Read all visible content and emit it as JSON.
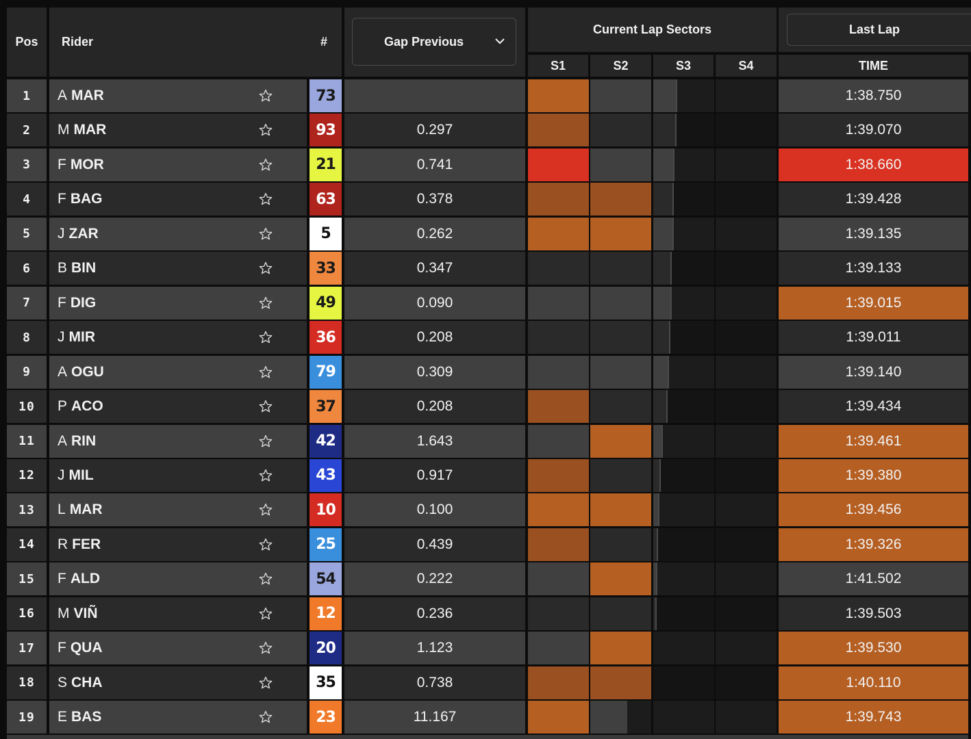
{
  "header": {
    "pos": "Pos",
    "rider": "Rider",
    "number": "#",
    "gap_dropdown": "Gap Previous",
    "current_lap_sectors": "Current Lap Sectors",
    "sectors": [
      "S1",
      "S2",
      "S3",
      "S4"
    ],
    "last_lap": "Last Lap",
    "time": "TIME"
  },
  "colors": {
    "personal_best_sector": "#b55f23",
    "overall_best": "#d93222",
    "neutral_light": "#404040",
    "neutral_dark": "#2a2a2a"
  },
  "rows": [
    {
      "pos": "1",
      "initial": "A",
      "surname": "MAR",
      "number": "73",
      "num_bg": "#9aa7de",
      "num_fg": "#1a1a1a",
      "gap": "",
      "s1": "orange",
      "s2": "neutral",
      "s3_progress": 0.37,
      "time": "1:38.750",
      "time_state": "neutral"
    },
    {
      "pos": "2",
      "initial": "M",
      "surname": "MAR",
      "number": "93",
      "num_bg": "#b0241e",
      "num_fg": "#ffffff",
      "gap": "0.297",
      "s1": "dark-orange",
      "s2": "neutral",
      "s3_progress": 0.36,
      "time": "1:39.070",
      "time_state": "neutral"
    },
    {
      "pos": "3",
      "initial": "F",
      "surname": "MOR",
      "number": "21",
      "num_bg": "#e5f542",
      "num_fg": "#1a1a1a",
      "gap": "0.741",
      "s1": "red",
      "s2": "neutral",
      "s3_progress": 0.33,
      "time": "1:38.660",
      "time_state": "red"
    },
    {
      "pos": "4",
      "initial": "F",
      "surname": "BAG",
      "number": "63",
      "num_bg": "#b0241e",
      "num_fg": "#ffffff",
      "gap": "0.378",
      "s1": "dark-orange",
      "s2": "dark-orange",
      "s3_progress": 0.31,
      "time": "1:39.428",
      "time_state": "neutral"
    },
    {
      "pos": "5",
      "initial": "J",
      "surname": "ZAR",
      "number": "5",
      "num_bg": "#ffffff",
      "num_fg": "#111111",
      "gap": "0.262",
      "s1": "orange",
      "s2": "orange",
      "s3_progress": 0.31,
      "time": "1:39.135",
      "time_state": "neutral"
    },
    {
      "pos": "6",
      "initial": "B",
      "surname": "BIN",
      "number": "33",
      "num_bg": "#f0873f",
      "num_fg": "#1a1a1a",
      "gap": "0.347",
      "s1": "neutral",
      "s2": "neutral",
      "s3_progress": 0.28,
      "time": "1:39.133",
      "time_state": "neutral"
    },
    {
      "pos": "7",
      "initial": "F",
      "surname": "DIG",
      "number": "49",
      "num_bg": "#e5f542",
      "num_fg": "#1a1a1a",
      "gap": "0.090",
      "s1": "neutral",
      "s2": "neutral",
      "s3_progress": 0.28,
      "time": "1:39.015",
      "time_state": "orange"
    },
    {
      "pos": "8",
      "initial": "J",
      "surname": "MIR",
      "number": "36",
      "num_bg": "#d42b22",
      "num_fg": "#ffffff",
      "gap": "0.208",
      "s1": "neutral",
      "s2": "neutral",
      "s3_progress": 0.26,
      "time": "1:39.011",
      "time_state": "neutral"
    },
    {
      "pos": "9",
      "initial": "A",
      "surname": "OGU",
      "number": "79",
      "num_bg": "#3a8fdc",
      "num_fg": "#ffffff",
      "gap": "0.309",
      "s1": "neutral",
      "s2": "neutral",
      "s3_progress": 0.24,
      "time": "1:39.140",
      "time_state": "neutral"
    },
    {
      "pos": "10",
      "initial": "P",
      "surname": "ACO",
      "number": "37",
      "num_bg": "#f0873f",
      "num_fg": "#1a1a1a",
      "gap": "0.208",
      "s1": "dark-orange",
      "s2": "neutral",
      "s3_progress": 0.21,
      "time": "1:39.434",
      "time_state": "neutral"
    },
    {
      "pos": "11",
      "initial": "A",
      "surname": "RIN",
      "number": "42",
      "num_bg": "#1f2c86",
      "num_fg": "#ffffff",
      "gap": "1.643",
      "s1": "neutral",
      "s2": "orange",
      "s3_progress": 0.14,
      "time": "1:39.461",
      "time_state": "orange"
    },
    {
      "pos": "12",
      "initial": "J",
      "surname": "MIL",
      "number": "43",
      "num_bg": "#2a46d4",
      "num_fg": "#ffffff",
      "gap": "0.917",
      "s1": "dark-orange",
      "s2": "neutral",
      "s3_progress": 0.1,
      "time": "1:39.380",
      "time_state": "orange"
    },
    {
      "pos": "13",
      "initial": "L",
      "surname": "MAR",
      "number": "10",
      "num_bg": "#d42b22",
      "num_fg": "#ffffff",
      "gap": "0.100",
      "s1": "orange",
      "s2": "orange",
      "s3_progress": 0.08,
      "time": "1:39.456",
      "time_state": "orange"
    },
    {
      "pos": "14",
      "initial": "R",
      "surname": "FER",
      "number": "25",
      "num_bg": "#3a8fdc",
      "num_fg": "#ffffff",
      "gap": "0.439",
      "s1": "dark-orange",
      "s2": "neutral",
      "s3_progress": 0.06,
      "time": "1:39.326",
      "time_state": "orange"
    },
    {
      "pos": "15",
      "initial": "F",
      "surname": "ALD",
      "number": "54",
      "num_bg": "#9aa7de",
      "num_fg": "#1a1a1a",
      "gap": "0.222",
      "s1": "neutral",
      "s2": "orange",
      "s3_progress": 0.04,
      "time": "1:41.502",
      "time_state": "neutral"
    },
    {
      "pos": "16",
      "initial": "M",
      "surname": "VIÑ",
      "number": "12",
      "num_bg": "#f07a2a",
      "num_fg": "#ffffff",
      "gap": "0.236",
      "s1": "neutral",
      "s2": "neutral",
      "s3_progress": 0.03,
      "time": "1:39.503",
      "time_state": "neutral"
    },
    {
      "pos": "17",
      "initial": "F",
      "surname": "QUA",
      "number": "20",
      "num_bg": "#1f2c86",
      "num_fg": "#ffffff",
      "gap": "1.123",
      "s1": "neutral",
      "s2": "orange",
      "s3_progress": 0,
      "time": "1:39.530",
      "time_state": "orange"
    },
    {
      "pos": "18",
      "initial": "S",
      "surname": "CHA",
      "number": "35",
      "num_bg": "#ffffff",
      "num_fg": "#111111",
      "gap": "0.738",
      "s1": "dark-orange",
      "s2": "dark-orange",
      "s3_progress": 0,
      "time": "1:40.110",
      "time_state": "orange"
    },
    {
      "pos": "19",
      "initial": "E",
      "surname": "BAS",
      "number": "23",
      "num_bg": "#f07a2a",
      "num_fg": "#ffffff",
      "gap": "11.167",
      "s1": "orange",
      "s2": "partial",
      "s3_progress": 0,
      "time": "1:39.743",
      "time_state": "orange"
    }
  ]
}
